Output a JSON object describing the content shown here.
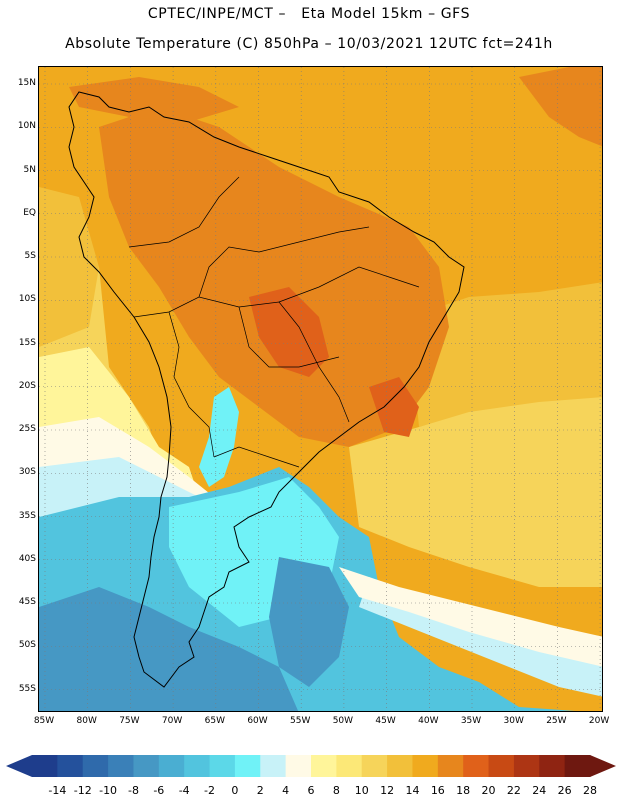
{
  "header": {
    "line1": "CPTEC/INPE/MCT –   Eta Model 15km – GFS",
    "line2": "Absolute Temperature (C) 850hPa – 10/03/2021 12UTC fct=241h"
  },
  "axes": {
    "lat_labels": [
      "15N",
      "10N",
      "5N",
      "EQ",
      "5S",
      "10S",
      "15S",
      "20S",
      "25S",
      "30S",
      "35S",
      "40S",
      "45S",
      "50S",
      "55S"
    ],
    "lon_labels": [
      "85W",
      "80W",
      "75W",
      "70W",
      "65W",
      "60W",
      "55W",
      "50W",
      "45W",
      "40W",
      "35W",
      "30W",
      "25W",
      "20W"
    ]
  },
  "colorbar": {
    "labels": [
      "-14",
      "-12",
      "-10",
      "-8",
      "-6",
      "-4",
      "-2",
      "0",
      "2",
      "4",
      "6",
      "8",
      "10",
      "12",
      "14",
      "16",
      "18",
      "20",
      "22",
      "24",
      "26",
      "28"
    ],
    "colors": [
      "#1e3d8c",
      "#24519c",
      "#2f6aab",
      "#3a80b8",
      "#4698c4",
      "#4aaed2",
      "#52c4de",
      "#5cd8e8",
      "#70f2f7",
      "#c8f2f8",
      "#fffae6",
      "#fff59a",
      "#fce877",
      "#f6d45a",
      "#f2c03a",
      "#f0aa1e",
      "#e7861d",
      "#e0611a",
      "#c84a14",
      "#ad3514",
      "#8f2412",
      "#6e1810"
    ]
  },
  "map": {
    "colors": {
      "sea_deep": "#3a80b8",
      "cold_blue": "#4698c4",
      "cyan_mid": "#52c4de",
      "cyan_light": "#70f2f7",
      "pale_cyan": "#c8f2f8",
      "cream": "#fffae6",
      "pale_yellow": "#fff59a",
      "light_yellow": "#fce877",
      "yellow": "#f6d45a",
      "gold": "#f2c03a",
      "orange_light": "#f0aa1e",
      "orange": "#e7861d",
      "red_orange": "#e0611a",
      "coast": "#000000",
      "grid": "#7a7a7a"
    }
  }
}
